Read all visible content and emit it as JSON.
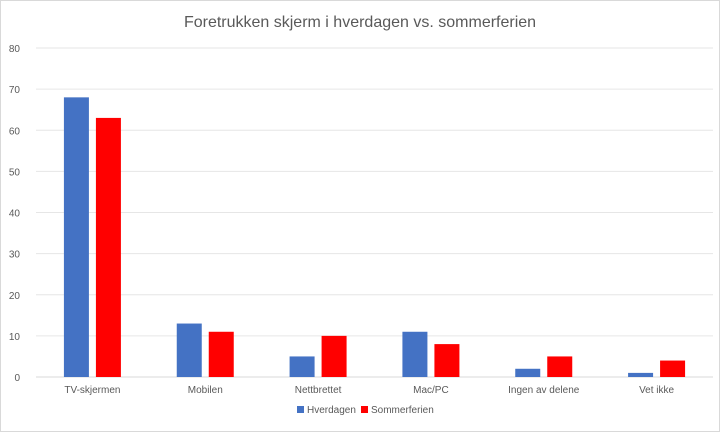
{
  "chart_data": {
    "type": "bar",
    "title": "Foretrukken skjerm i hverdagen vs. sommerferien",
    "xlabel": "",
    "ylabel": "",
    "ylim": [
      0,
      80
    ],
    "yticks": [
      "0",
      "10",
      "20",
      "30",
      "40",
      "50",
      "60",
      "70",
      "80"
    ],
    "categories": [
      "TV-skjermen",
      "Mobilen",
      "Nettbrettet",
      "Mac/PC",
      "Ingen av delene",
      "Vet ikke"
    ],
    "series": [
      {
        "name": "Hverdagen",
        "color": "#4472C4",
        "values": [
          68,
          13,
          5,
          11,
          2,
          1
        ]
      },
      {
        "name": "Sommerferien",
        "color": "#FF0000",
        "values": [
          63,
          11,
          10,
          8,
          5,
          4
        ]
      }
    ],
    "grid": true,
    "legend": "bottom"
  }
}
